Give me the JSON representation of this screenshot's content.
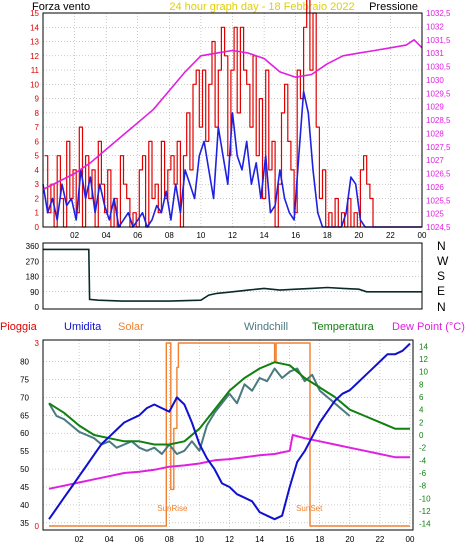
{
  "colors": {
    "wind": "#e00000",
    "gust_speed": "#2020e0",
    "pressure": "#e020e0",
    "dew_point": "#e020e0",
    "rain": "#e00000",
    "humidity": "#1010d0",
    "solar": "#f08030",
    "windchill": "#4a7a80",
    "temperature": "#108010",
    "direction": "#0a2a2a",
    "grid": "#9a9a9a",
    "frame": "#000000"
  },
  "chart_data": [
    {
      "type": "line",
      "title": "24 hour graph day - 18 Febbraio 2022",
      "left_label": "Forza vento",
      "right_label": "Pressione",
      "x_ticks": [
        "02",
        "04",
        "06",
        "08",
        "10",
        "12",
        "14",
        "16",
        "18",
        "20",
        "22",
        "00"
      ],
      "y_left_ticks": [
        "0",
        "1",
        "2",
        "3",
        "4",
        "5",
        "6",
        "7",
        "8",
        "9",
        "10",
        "11",
        "12",
        "13",
        "14",
        "15"
      ],
      "y_left_range": [
        0,
        15
      ],
      "y_right_ticks": [
        "1024,5",
        "1025",
        "1025,5",
        "1026",
        "1026,5",
        "1027",
        "1027,5",
        "1028",
        "1028,5",
        "1029",
        "1029,5",
        "1030",
        "1030,5",
        "1031",
        "1031,5",
        "1032",
        "1032,5"
      ],
      "y_right_range": [
        1024.5,
        1032.5
      ],
      "x_range_hours": [
        0,
        24
      ],
      "grid": true,
      "series": [
        {
          "key": "wind",
          "axis": "left",
          "step": true,
          "x": [
            0.1,
            0.3,
            0.5,
            0.7,
            0.9,
            1.1,
            1.3,
            1.5,
            1.7,
            1.9,
            2.1,
            2.3,
            2.5,
            2.7,
            2.9,
            3.1,
            3.3,
            3.5,
            3.7,
            3.9,
            4.1,
            4.3,
            4.5,
            4.7,
            4.9,
            5.1,
            5.3,
            5.5,
            5.7,
            5.9,
            6.1,
            6.3,
            6.5,
            6.7,
            6.9,
            7.1,
            7.3,
            7.5,
            7.7,
            7.9,
            8.1,
            8.3,
            8.5,
            8.7,
            8.9,
            9.1,
            9.3,
            9.5,
            9.7,
            9.9,
            10.1,
            10.3,
            10.5,
            10.7,
            10.9,
            11.1,
            11.3,
            11.5,
            11.7,
            11.9,
            12.1,
            12.3,
            12.5,
            12.7,
            12.9,
            13.1,
            13.3,
            13.5,
            13.7,
            13.9,
            14.1,
            14.3,
            14.5,
            14.7,
            14.9,
            15.1,
            15.3,
            15.5,
            15.7,
            15.9,
            16.1,
            16.3,
            16.5,
            16.7,
            16.9,
            17.1,
            17.3,
            17.5,
            17.7,
            17.9,
            18.1,
            18.3,
            18.5,
            18.7,
            18.9,
            19.1,
            19.3,
            19.5,
            19.7,
            19.9,
            20.1,
            20.3,
            20.5,
            20.7,
            20.9,
            21.1,
            21.3,
            21.5,
            21.7,
            21.9,
            22.1,
            22.3,
            22.5,
            22.7,
            22.9,
            23.1,
            23.3,
            23.5,
            23.7,
            23.9
          ],
          "values": [
            5,
            1,
            3,
            0,
            5,
            2,
            0,
            6,
            2,
            4,
            1,
            7,
            0,
            5,
            2,
            4,
            0,
            6,
            3,
            1,
            4,
            0,
            2,
            0,
            5,
            3,
            2,
            0,
            1,
            0,
            4,
            5,
            0,
            6,
            2,
            3,
            1,
            6,
            2,
            4,
            5,
            3,
            6,
            0,
            5,
            8,
            4,
            10,
            11,
            7,
            11,
            6,
            10,
            13,
            7,
            11,
            14,
            12,
            5,
            11,
            14,
            8,
            14,
            11,
            10,
            7,
            12,
            5,
            9,
            2,
            11,
            4,
            6,
            0,
            3,
            8,
            10,
            6,
            4,
            1,
            11,
            9,
            14,
            16,
            11,
            15,
            7,
            2,
            4,
            0,
            1,
            0,
            2,
            0,
            1,
            0,
            2,
            0,
            1,
            0,
            4,
            5,
            3,
            2,
            0,
            0,
            0,
            0,
            0,
            0,
            0,
            0,
            0,
            0,
            0,
            0,
            0,
            0,
            0,
            0
          ]
        },
        {
          "key": "gust_speed",
          "axis": "left",
          "step": false,
          "x": [
            0.0,
            0.3,
            0.6,
            0.9,
            1.2,
            1.5,
            1.8,
            2.1,
            2.4,
            2.7,
            3.0,
            3.3,
            3.6,
            3.9,
            4.2,
            4.5,
            4.8,
            5.1,
            5.4,
            5.7,
            6.0,
            6.3,
            6.6,
            6.9,
            7.2,
            7.5,
            7.8,
            8.1,
            8.4,
            8.7,
            9.0,
            9.3,
            9.6,
            9.9,
            10.2,
            10.5,
            10.8,
            11.1,
            11.4,
            11.7,
            12.0,
            12.3,
            12.6,
            12.9,
            13.2,
            13.5,
            13.8,
            14.1,
            14.4,
            14.7,
            15.0,
            15.3,
            15.6,
            15.9,
            16.2,
            16.5,
            16.8,
            17.1,
            17.4,
            17.7,
            18.0,
            18.3,
            18.6,
            18.9,
            19.2,
            19.5,
            19.8,
            20.1,
            20.4,
            20.7,
            21.0,
            21.5,
            22.0,
            23.0,
            24.0
          ],
          "values": [
            3.0,
            1.0,
            2.0,
            0.5,
            3.0,
            1.5,
            2.0,
            0.5,
            4.0,
            2.0,
            3.5,
            1.0,
            3.0,
            1.5,
            0.5,
            2.0,
            0.0,
            0.5,
            1.0,
            0.0,
            0.5,
            1.0,
            0.0,
            0.5,
            1.5,
            1.0,
            2.5,
            0.5,
            3.0,
            1.0,
            4.0,
            3.0,
            2.0,
            5.0,
            6.0,
            4.0,
            2.0,
            7.0,
            5.0,
            3.0,
            8.0,
            5.0,
            4.0,
            6.0,
            3.0,
            4.5,
            2.0,
            5.0,
            1.0,
            1.5,
            4.0,
            2.0,
            1.0,
            0.5,
            5.0,
            9.5,
            8.0,
            4.0,
            1.0,
            0.0,
            0.0,
            0.0,
            0.0,
            0.0,
            1.0,
            3.5,
            3.0,
            0.5,
            0.0,
            0.0,
            0.0,
            0.0,
            0.0,
            0.0,
            0.0
          ]
        },
        {
          "key": "pressure",
          "axis": "right",
          "step": false,
          "x": [
            0.0,
            1.0,
            2.0,
            3.0,
            4.0,
            5.0,
            6.0,
            7.0,
            8.0,
            9.0,
            10.0,
            11.0,
            12.0,
            13.0,
            14.0,
            15.0,
            16.0,
            17.0,
            18.0,
            19.0,
            20.0,
            21.0,
            22.0,
            23.0,
            23.5,
            24.0
          ],
          "values": [
            1025.9,
            1026.2,
            1026.5,
            1026.9,
            1027.4,
            1027.9,
            1028.4,
            1028.9,
            1029.6,
            1030.3,
            1030.9,
            1031.0,
            1031.1,
            1031.0,
            1030.8,
            1030.3,
            1030.1,
            1030.2,
            1030.6,
            1030.9,
            1031.0,
            1031.1,
            1031.2,
            1031.3,
            1031.5,
            1031.2
          ]
        }
      ]
    },
    {
      "type": "line",
      "title": "",
      "y_ticks": [
        "0",
        "90",
        "180",
        "270",
        "360"
      ],
      "y_range": [
        0,
        360
      ],
      "x_range_hours": [
        0,
        24
      ],
      "direction_labels": [
        "N",
        "W",
        "S",
        "E",
        "N"
      ],
      "grid": true,
      "series": [
        {
          "key": "direction",
          "x": [
            0.0,
            2.9,
            2.95,
            3.5,
            5.0,
            8.0,
            10.0,
            10.5,
            11.0,
            12.0,
            13.0,
            14.0,
            15.0,
            16.0,
            17.0,
            18.0,
            19.0,
            20.0,
            20.5,
            24.0
          ],
          "values": [
            340,
            340,
            45,
            40,
            35,
            35,
            40,
            70,
            80,
            90,
            100,
            110,
            100,
            105,
            110,
            115,
            110,
            105,
            90,
            90
          ]
        }
      ]
    },
    {
      "type": "line",
      "title": "",
      "legend": [
        "Pioggia",
        "Umidita",
        "Solar",
        "Windchill",
        "Temperatura",
        "Dew Point (°C)"
      ],
      "y_left_ticks": [
        "35",
        "40",
        "45",
        "50",
        "55",
        "60",
        "65",
        "70",
        "75",
        "80"
      ],
      "y_left_range": [
        33,
        86
      ],
      "y_right_ticks": [
        "14",
        "12",
        "10",
        "8",
        "6",
        "4",
        "2",
        "0",
        "-2",
        "-4",
        "-6",
        "-8",
        "-10",
        "-12",
        "-14"
      ],
      "y_right_range": [
        -15,
        15
      ],
      "rain_tick": "3",
      "rain_zero": "0",
      "x_range_hours": [
        0,
        24
      ],
      "annotations": [
        {
          "text": "SunRise",
          "hour": 8.2
        },
        {
          "text": "SunSet",
          "hour": 17.3
        }
      ],
      "grid": true,
      "series": [
        {
          "key": "humidity",
          "axis": "left",
          "x": [
            0.0,
            0.5,
            1.0,
            1.5,
            2.0,
            2.5,
            3.0,
            3.5,
            4.0,
            4.5,
            5.0,
            5.5,
            6.0,
            6.5,
            7.0,
            7.5,
            8.0,
            8.5,
            9.0,
            9.5,
            10.0,
            10.5,
            11.0,
            11.5,
            12.0,
            12.5,
            13.0,
            13.5,
            14.0,
            14.5,
            15.0,
            15.5,
            16.0,
            16.5,
            17.0,
            17.5,
            18.0,
            18.5,
            19.0,
            19.5,
            20.0,
            20.5,
            21.0,
            21.5,
            22.0,
            22.5,
            23.0,
            23.5,
            24.0
          ],
          "values": [
            36,
            39,
            42,
            45,
            48,
            51,
            54,
            57,
            59,
            61,
            63,
            64,
            65,
            67,
            68,
            67,
            66,
            70,
            68,
            63,
            57,
            53,
            50,
            46,
            45,
            43,
            42,
            41,
            38,
            37,
            36,
            37,
            45,
            52,
            55,
            59,
            63,
            66,
            69,
            71,
            72,
            74,
            76,
            78,
            80,
            82,
            82,
            83,
            85
          ]
        },
        {
          "key": "temperature",
          "axis": "right",
          "x": [
            0.0,
            1.0,
            2.0,
            3.0,
            4.0,
            5.0,
            6.0,
            7.0,
            8.0,
            9.0,
            10.0,
            11.0,
            12.0,
            13.0,
            14.0,
            15.0,
            16.0,
            17.0,
            18.0,
            19.0,
            20.0,
            21.0,
            22.0,
            23.0,
            24.0
          ],
          "values": [
            5.0,
            3.5,
            1.5,
            0.0,
            -0.5,
            -1.0,
            -1.0,
            -1.5,
            -1.5,
            -1.0,
            1.0,
            4.0,
            7.0,
            9.0,
            10.5,
            11.5,
            11.0,
            9.0,
            7.5,
            6.0,
            4.0,
            3.0,
            2.0,
            1.0,
            1.0
          ]
        },
        {
          "key": "windchill",
          "axis": "right",
          "x": [
            0.0,
            0.5,
            1.0,
            1.5,
            2.0,
            2.5,
            3.0,
            3.5,
            4.0,
            4.5,
            5.0,
            5.5,
            6.0,
            6.5,
            7.0,
            7.5,
            8.0,
            8.5,
            9.0,
            9.5,
            10.0,
            10.5,
            11.0,
            11.5,
            12.0,
            12.5,
            13.0,
            13.5,
            14.0,
            14.5,
            15.0,
            15.5,
            16.0,
            16.5,
            17.0,
            17.5,
            18.0,
            18.5,
            19.0,
            19.5,
            20.0
          ],
          "values": [
            5.0,
            3.0,
            2.5,
            1.5,
            0.5,
            0.0,
            -0.5,
            -1.5,
            -1.0,
            -2.0,
            -1.5,
            -1.0,
            -2.0,
            -2.5,
            -2.0,
            -3.0,
            -1.5,
            -3.0,
            -2.5,
            -1.0,
            -2.5,
            1.5,
            3.5,
            5.0,
            6.5,
            5.0,
            8.0,
            7.0,
            9.0,
            8.5,
            10.5,
            9.0,
            10.0,
            10.5,
            8.5,
            9.5,
            7.0,
            6.0,
            5.0,
            4.0,
            3.0
          ]
        },
        {
          "key": "dew_point",
          "axis": "right",
          "x": [
            0.0,
            1.0,
            2.0,
            3.0,
            4.0,
            5.0,
            6.0,
            7.0,
            8.0,
            9.0,
            10.0,
            11.0,
            12.0,
            13.0,
            14.0,
            15.0,
            16.0,
            16.2,
            17.0,
            18.0,
            19.0,
            20.0,
            21.0,
            22.0,
            23.0,
            24.0
          ],
          "values": [
            -8.5,
            -8.0,
            -7.5,
            -7.0,
            -6.5,
            -6.0,
            -5.8,
            -5.5,
            -5.0,
            -4.8,
            -4.5,
            -4.0,
            -3.8,
            -3.5,
            -3.2,
            -3.0,
            -2.5,
            0.0,
            -0.5,
            -1.0,
            -1.5,
            -2.0,
            -2.5,
            -3.0,
            -3.5,
            -3.5
          ]
        },
        {
          "key": "solar",
          "axis": "rain",
          "step": true,
          "x": [
            0.0,
            7.7,
            7.8,
            8.1,
            8.3,
            8.5,
            8.6,
            14.9,
            15.0,
            15.1,
            17.3,
            17.35,
            24.0
          ],
          "values": [
            0,
            0,
            3,
            0.6,
            1.6,
            2.6,
            3,
            3,
            2.7,
            3,
            3,
            0,
            0
          ]
        }
      ]
    }
  ]
}
